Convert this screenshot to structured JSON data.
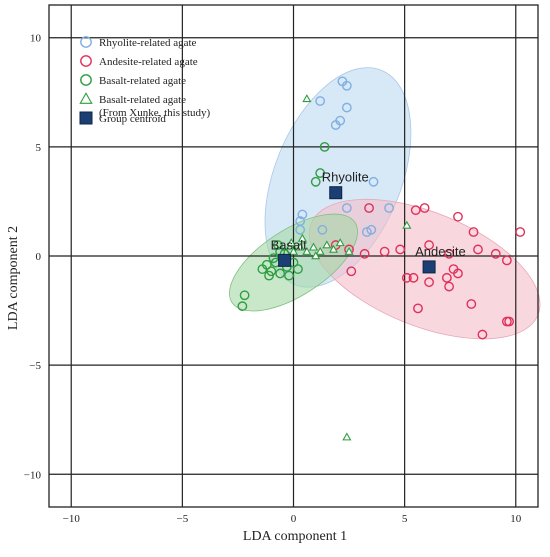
{
  "chart_data": {
    "type": "scatter",
    "title": "",
    "xlabel": "LDA component  1",
    "ylabel": "LDA component 2",
    "xlim": [
      -11,
      11
    ],
    "ylim": [
      -11.5,
      11.5
    ],
    "xticks": [
      -10,
      -5,
      0,
      5,
      10
    ],
    "yticks": [
      -10,
      -5,
      0,
      5,
      10
    ],
    "grid": true,
    "legend_position": "top-left",
    "legend": [
      {
        "label": "Rhyolite-related agate",
        "marker": "circle",
        "color": "#7fb0e0"
      },
      {
        "label": "Andesite-related agate",
        "marker": "circle",
        "color": "#e0305a"
      },
      {
        "label": "Basalt-related agate",
        "marker": "circle",
        "color": "#2e9e40"
      },
      {
        "label": "Basalt-related agate\n(From Xunke, this study)",
        "marker": "triangle",
        "color": "#2e9e40"
      },
      {
        "label": "Group  centroid",
        "marker": "square",
        "color": "#1c3f73"
      }
    ],
    "ellipses": [
      {
        "group": "Rhyolite",
        "cx": 2.0,
        "cy": 3.6,
        "rx": 5.2,
        "ry": 2.9,
        "angle": 68,
        "fill": "#bcd8f2",
        "stroke": "#a8c8e8"
      },
      {
        "group": "Andesite",
        "cx": 5.9,
        "cy": -0.6,
        "rx": 5.5,
        "ry": 2.6,
        "angle": -22,
        "fill": "#f5bcc8",
        "stroke": "#e8a8b8"
      },
      {
        "group": "Basalt",
        "cx": 0.0,
        "cy": -0.3,
        "rx": 3.3,
        "ry": 1.5,
        "angle": 33,
        "fill": "#a5d8a5",
        "stroke": "#80c080"
      }
    ],
    "centroids": [
      {
        "label": "Rhyolite",
        "x": 1.9,
        "y": 2.9
      },
      {
        "label": "Andesite",
        "x": 6.1,
        "y": -0.5
      },
      {
        "label": "Basalt",
        "x": -0.4,
        "y": -0.2
      }
    ],
    "series": [
      {
        "name": "Rhyolite-related agate",
        "marker": "circle",
        "color": "#7fb0e0",
        "points": [
          [
            2.2,
            8.0
          ],
          [
            2.4,
            7.8
          ],
          [
            1.2,
            7.1
          ],
          [
            2.4,
            6.8
          ],
          [
            2.1,
            6.2
          ],
          [
            1.9,
            6.0
          ],
          [
            3.6,
            3.4
          ],
          [
            2.4,
            2.2
          ],
          [
            3.3,
            1.1
          ],
          [
            3.5,
            1.2
          ],
          [
            0.3,
            1.2
          ],
          [
            0.3,
            1.6
          ],
          [
            0.4,
            1.9
          ],
          [
            1.3,
            1.2
          ],
          [
            4.3,
            2.2
          ]
        ]
      },
      {
        "name": "Andesite-related agate",
        "marker": "circle",
        "color": "#e0305a",
        "points": [
          [
            5.5,
            2.1
          ],
          [
            5.9,
            2.2
          ],
          [
            7.4,
            1.8
          ],
          [
            8.1,
            1.1
          ],
          [
            10.2,
            1.1
          ],
          [
            3.4,
            2.2
          ],
          [
            1.9,
            0.5
          ],
          [
            2.5,
            0.3
          ],
          [
            3.2,
            0.1
          ],
          [
            4.1,
            0.2
          ],
          [
            4.8,
            0.3
          ],
          [
            6.1,
            0.5
          ],
          [
            7.0,
            0.1
          ],
          [
            8.3,
            0.3
          ],
          [
            9.1,
            0.1
          ],
          [
            9.6,
            -0.2
          ],
          [
            2.6,
            -0.7
          ],
          [
            5.1,
            -1.0
          ],
          [
            5.4,
            -1.0
          ],
          [
            6.1,
            -1.2
          ],
          [
            6.9,
            -1.0
          ],
          [
            7.4,
            -0.8
          ],
          [
            7.0,
            -1.4
          ],
          [
            7.2,
            -0.6
          ],
          [
            8.0,
            -2.2
          ],
          [
            9.6,
            -3.0
          ],
          [
            9.7,
            -3.0
          ],
          [
            8.5,
            -3.6
          ],
          [
            5.6,
            -2.4
          ]
        ]
      },
      {
        "name": "Basalt-related agate",
        "marker": "circle",
        "color": "#2e9e40",
        "points": [
          [
            1.4,
            5.0
          ],
          [
            1.2,
            3.8
          ],
          [
            1.0,
            3.4
          ],
          [
            -2.2,
            -1.8
          ],
          [
            -2.3,
            -2.3
          ],
          [
            -1.2,
            -0.4
          ],
          [
            -1.0,
            -0.7
          ],
          [
            -0.8,
            -0.3
          ],
          [
            -0.6,
            -0.8
          ],
          [
            -0.6,
            0.2
          ],
          [
            -0.3,
            -0.5
          ],
          [
            0.0,
            -0.3
          ],
          [
            -0.4,
            0.1
          ],
          [
            -1.4,
            -0.6
          ],
          [
            -0.9,
            -0.1
          ],
          [
            -0.2,
            -0.9
          ],
          [
            -1.1,
            -0.9
          ],
          [
            0.2,
            -0.6
          ],
          [
            -0.7,
            0.5
          ],
          [
            -0.1,
            0.3
          ]
        ]
      },
      {
        "name": "Basalt-related agate (From Xunke, this study)",
        "marker": "triangle",
        "color": "#2e9e40",
        "points": [
          [
            0.6,
            7.2
          ],
          [
            0.0,
            0.2
          ],
          [
            0.3,
            0.4
          ],
          [
            0.6,
            0.2
          ],
          [
            0.9,
            0.4
          ],
          [
            1.2,
            0.2
          ],
          [
            1.5,
            0.5
          ],
          [
            1.8,
            0.3
          ],
          [
            2.1,
            0.6
          ],
          [
            -0.1,
            0.6
          ],
          [
            0.4,
            0.8
          ],
          [
            1.0,
            0.0
          ],
          [
            2.5,
            0.2
          ],
          [
            5.1,
            1.4
          ],
          [
            2.4,
            -8.3
          ]
        ]
      }
    ]
  }
}
